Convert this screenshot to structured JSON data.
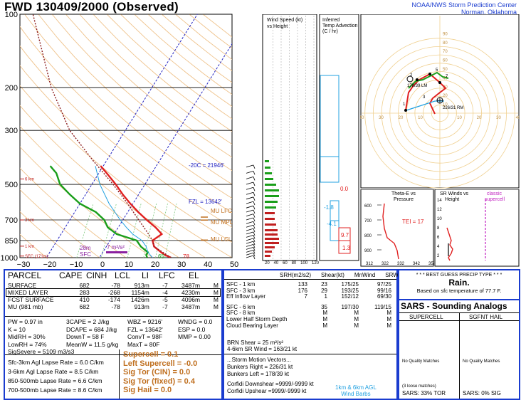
{
  "header": {
    "title": "FWD   130409/2000  (Observed)",
    "org_line1": "NOAA/NWS Storm Prediction Center",
    "org_line2": "Norman, Oklahoma"
  },
  "skewt": {
    "pressure_labels": [
      "100",
      "200",
      "300",
      "500",
      "700",
      "850",
      "1000"
    ],
    "temp_labels": [
      "−30",
      "−20",
      "−10",
      "0",
      "10",
      "20",
      "30",
      "40",
      "50"
    ],
    "height_labels": [
      "6 km",
      "3 km",
      "1 km",
      "SFC (171m)"
    ],
    "annotations": {
      "isotherm_hght": "-20C = 21946'",
      "fzl": "FZL = 13642'",
      "mu_lfc": "MU LFC",
      "mu_mpl": "MU MPL",
      "mu_lcl": "MU LCL",
      "inflow_top": "28m",
      "inflow_bot": "SFC",
      "srh_shear": "7 m²/s²",
      "sfc_td": "65",
      "sfc_t": "78"
    },
    "colors": {
      "temp": "#e02020",
      "dewp": "#1a9e1a",
      "parcel": "#8b1a1a",
      "isotherm": "#2020c0",
      "wetbulb": "#20a0e0",
      "adiabat": "#e8b070"
    }
  },
  "wind_speed_panel": {
    "title": "Wind Speed (kt)",
    "subtitle": "vs Height",
    "x_ticks": [
      "20",
      "40",
      "60",
      "80",
      "100",
      "120"
    ]
  },
  "temp_adv_panel": {
    "title": "Inferred",
    "subtitle": "Temp Advection",
    "unit": "(C / hr)",
    "values": [
      "0.0",
      "-1.8",
      "-4.1",
      "9.7",
      "1.3"
    ]
  },
  "hodograph": {
    "ticks_x": [
      "40",
      "30",
      "20",
      "10",
      "10",
      "20",
      "30",
      "40"
    ],
    "ticks_y": [
      "90",
      "80",
      "70",
      "60",
      "50",
      "40",
      "30",
      "20",
      "10"
    ],
    "labels": {
      "lm": "178/39 LM",
      "rm": "226/31 RM",
      "h5": "5",
      "h7": "7",
      "h1": "1",
      "h2": "2",
      "h3": "3"
    }
  },
  "theta_panel": {
    "title": "Theta-E vs",
    "subtitle": "Pressure",
    "tei": "TEI = 17",
    "p_ticks": [
      "600",
      "700",
      "800",
      "900"
    ],
    "x_ticks": [
      "312",
      "322",
      "332",
      "342",
      "352"
    ]
  },
  "srw_panel": {
    "title": "SR Winds vs",
    "subtitle": "Height",
    "h_ticks": [
      "14",
      "12",
      "10",
      "8",
      "6",
      "4",
      "2"
    ],
    "class_title": "classic",
    "class_sub": "supercell"
  },
  "parcels": {
    "headers": [
      "PARCEL",
      "CAPE",
      "CINH",
      "LCL",
      "LI",
      "LFC",
      "EL"
    ],
    "rows": [
      [
        "SURFACE",
        "682",
        "-78",
        "913m",
        "-7",
        "3487m",
        "M"
      ],
      [
        "MIXED LAYER",
        "283",
        "-268",
        "1154m",
        "-4",
        "4230m",
        "M"
      ],
      [
        "FCST SURFACE",
        "410",
        "-174",
        "1426m",
        "-5",
        "4096m",
        "M"
      ],
      [
        "MU  (981 mb)",
        "682",
        "-78",
        "913m",
        "-7",
        "3487m",
        "M"
      ]
    ]
  },
  "thermo": {
    "col1": [
      "PW = 0.97 in",
      "K = 10",
      "MidRH = 30%",
      "LowRH = 74%",
      "SigSevere = 5109 m3/s3"
    ],
    "col2": [
      "3CAPE = 2 J/kg",
      "DCAPE = 684 J/kg",
      "DownT = 58 F",
      "MeanW = 11.5 g/kg"
    ],
    "col3": [
      "WBZ = 9216'",
      "FZL = 13642'",
      "ConvT = 98F",
      "MaxT = 80F"
    ],
    "col4": [
      "WNDG = 0.0",
      "ESP = 0.0",
      "MMP = 0.00"
    ],
    "lapse": [
      "Sfc-3km Agl Lapse Rate = 6.0 C/km",
      "3-6km Agl Lapse Rate = 8.5 C/km",
      "850-500mb Lapse Rate = 6.6 C/km",
      "700-500mb Lapse Rate = 8.6 C/km"
    ],
    "sig": [
      "Supercell = 0.1",
      "Left Supercell = -0.0",
      "Sig Tor (CIN) = 0.0",
      "Sig Tor (fixed) = 0.4",
      "Sig Hail = 0.0"
    ]
  },
  "kinematics": {
    "headers": [
      "SRH(m2/s2)",
      "Shear(kt)",
      "MnWind",
      "SRW"
    ],
    "rows": [
      [
        "SFC - 1 km",
        "133",
        "23",
        "175/25",
        "97/25"
      ],
      [
        "SFC - 3 km",
        "176",
        "29",
        "193/25",
        "99/16"
      ],
      [
        "Eff Inflow Layer",
        "7",
        "1",
        "152/12",
        "69/30"
      ],
      [
        "SFC - 6 km",
        "",
        "35",
        "197/30",
        "119/15"
      ],
      [
        "SFC - 8 km",
        "",
        "M",
        "M",
        "M"
      ],
      [
        "Lower Half Storm Depth",
        "",
        "M",
        "M",
        "M"
      ],
      [
        "Cloud Bearing Layer",
        "",
        "M",
        "M",
        "M"
      ]
    ],
    "brn": "BRN Shear = 25 m²/s²",
    "sr46": "4-6km SR Wind =       163/21 kt",
    "motion_title": "...Storm Motion Vectors...",
    "bunkers_r": "Bunkers Right =       226/31 kt",
    "bunkers_l": "Bunkers Left =         178/39 kt",
    "corfidi_d": "Corfidi Downshear =9999/-9999 kt",
    "corfidi_u": "Corfidi Upshear =9999/-9999 kt",
    "barb_legend1": "1km & 6km AGL",
    "barb_legend2": "Wind Barbs"
  },
  "precip": {
    "title": "* * * BEST GUESS PRECIP TYPE * * *",
    "value": "Rain.",
    "basis": "Based on sfc temperature of 77.7 F."
  },
  "sars": {
    "title": "SARS - Sounding Analogs",
    "col1": "SUPERCELL",
    "col2": "SGFNT HAIL",
    "nq1": "No Quality Matches",
    "nq2": "No Quality Matches",
    "loose": "(3 loose matches)",
    "tor": "SARS: 33% TOR",
    "sig": "SARS: 0% SIG"
  },
  "chart_data": {
    "type": "line",
    "title": "FWD   130409/2000  (Observed)",
    "xlabel": "",
    "ylabel": "",
    "y_axis": "pressure (mb), log scale",
    "ylim": [
      1000,
      100
    ],
    "xlim": [
      -30,
      50
    ],
    "series": [
      {
        "name": "",
        "color": "#e02020",
        "points": [
          [
            1000,
            27
          ],
          [
            975,
            24
          ],
          [
            950,
            22
          ],
          [
            925,
            20
          ],
          [
            900,
            18
          ],
          [
            850,
            16
          ],
          [
            800,
            18
          ],
          [
            750,
            14
          ],
          [
            700,
            9
          ],
          [
            650,
            4
          ],
          [
            600,
            -1
          ],
          [
            550,
            -6
          ],
          [
            500,
            -11
          ],
          [
            450,
            -17
          ],
          [
            420,
            -21
          ]
        ]
      },
      {
        "name": "",
        "color": "#1a9e1a",
        "points": [
          [
            1000,
            18
          ],
          [
            975,
            17
          ],
          [
            950,
            17
          ],
          [
            925,
            15
          ],
          [
            900,
            13
          ],
          [
            850,
            10
          ],
          [
            800,
            1
          ],
          [
            750,
            -4
          ],
          [
            700,
            -7
          ],
          [
            650,
            -12
          ],
          [
            600,
            -20
          ],
          [
            550,
            -26
          ],
          [
            500,
            -32
          ],
          [
            450,
            -36
          ],
          [
            420,
            -40
          ]
        ]
      },
      {
        "name": "",
        "color": "#8b1a1a",
        "points": [
          [
            1000,
            27
          ],
          [
            900,
            18
          ],
          [
            850,
            16
          ],
          [
            800,
            13
          ],
          [
            700,
            6
          ],
          [
            600,
            -2
          ],
          [
            500,
            -12
          ],
          [
            400,
            -25
          ],
          [
            300,
            -41
          ],
          [
            200,
            -58
          ],
          [
            100,
            -82
          ]
        ]
      }
    ]
  }
}
